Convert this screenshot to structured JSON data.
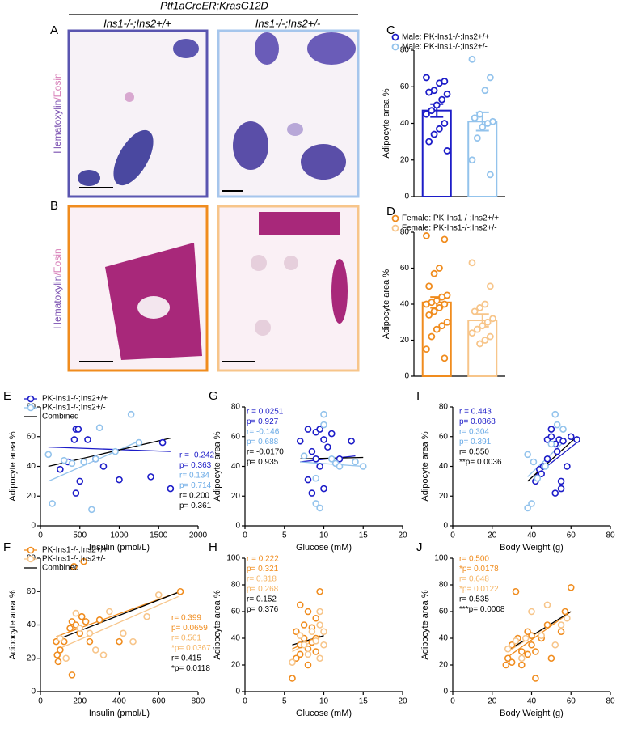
{
  "figure": {
    "header": "Ptf1aCreER;KrasG12D",
    "columns": [
      "Ins1-/-;Ins2+/+",
      "Ins1-/-;Ins2+/-"
    ],
    "panels": [
      {
        "letter": "A",
        "stain": [
          "Hematoxylin",
          "/Eosin"
        ]
      },
      {
        "letter": "B",
        "stain": [
          "Hematoxylin",
          "/Eosin"
        ]
      }
    ]
  },
  "chart_data": [
    {
      "type": "bar",
      "panel": "C",
      "ylabel": "Adipocyte area %",
      "ylim": [
        0,
        80
      ],
      "yticks": [
        0,
        20,
        40,
        60,
        80
      ],
      "series": [
        {
          "name": "Male: PK-Ins1-/-;Ins2+/+",
          "color": "#1c1cc8",
          "mean": 47,
          "sem": 3.5,
          "values": [
            65,
            63,
            62,
            58,
            57,
            56,
            53,
            50,
            47,
            45,
            40,
            37,
            34,
            30,
            25
          ]
        },
        {
          "name": "Male: PK-Ins1-/-;Ins2+/-",
          "color": "#93c3ec",
          "mean": 41,
          "sem": 5,
          "values": [
            75,
            65,
            58,
            45,
            43,
            41,
            40,
            38,
            32,
            20,
            12
          ]
        }
      ]
    },
    {
      "type": "bar",
      "panel": "D",
      "ylabel": "Adipocyte area %",
      "ylim": [
        0,
        80
      ],
      "yticks": [
        0,
        20,
        40,
        60,
        80
      ],
      "series": [
        {
          "name": "Female: PK-Ins1-/-;Ins2+/+",
          "color": "#f08c1e",
          "mean": 41,
          "sem": 3,
          "values": [
            78,
            76,
            60,
            57,
            50,
            45,
            44,
            42,
            41,
            40,
            40,
            38,
            36,
            34,
            30,
            28,
            26,
            22,
            15,
            10
          ]
        },
        {
          "name": "Female: PK-Ins1-/-;Ins2+/-",
          "color": "#f7c58a",
          "mean": 31,
          "sem": 3.5,
          "values": [
            63,
            50,
            40,
            38,
            36,
            32,
            30,
            28,
            26,
            24,
            22,
            20,
            18
          ]
        }
      ]
    },
    {
      "type": "scatter",
      "panel": "E",
      "xlabel": "Insulin (pmol/L)",
      "ylabel": "Adipocyte area %",
      "xlim": [
        0,
        2000
      ],
      "xticks": [
        0,
        500,
        1000,
        1500,
        2000
      ],
      "ylim": [
        0,
        80
      ],
      "yticks": [
        0,
        20,
        40,
        60,
        80
      ],
      "series": [
        {
          "name": "PK-Ins1-/-;Ins2+/+",
          "color": "#1c1cc8",
          "x": [
            450,
            480,
            430,
            600,
            700,
            350,
            800,
            1000,
            1400,
            1550,
            1650,
            450,
            500,
            250
          ],
          "values": [
            65,
            65,
            58,
            58,
            45,
            43,
            40,
            31,
            33,
            56,
            25,
            22,
            30,
            38
          ]
        },
        {
          "name": "PK-Ins1-/-;Ins2+/-",
          "color": "#93c3ec",
          "x": [
            100,
            150,
            300,
            400,
            550,
            650,
            700,
            750,
            950,
            1150,
            1250
          ],
          "values": [
            48,
            15,
            44,
            42,
            43,
            11,
            45,
            66,
            50,
            75,
            56
          ]
        }
      ],
      "fits": [
        {
          "color": "#1c1cc8",
          "x": [
            100,
            1650
          ],
          "values": [
            53,
            50
          ]
        },
        {
          "color": "#93c3ec",
          "x": [
            100,
            1250
          ],
          "values": [
            30,
            57
          ]
        },
        {
          "name": "Combined",
          "color": "#000000",
          "x": [
            100,
            1650
          ],
          "values": [
            40,
            59
          ]
        }
      ],
      "stats": [
        {
          "text": "r = -0.242",
          "color": "#1c1cc8"
        },
        {
          "text": "p= 0.363",
          "color": "#1c1cc8"
        },
        {
          "text": "r= 0.134",
          "color": "#6aaae6"
        },
        {
          "text": "p= 0.714",
          "color": "#6aaae6"
        },
        {
          "text": "r= 0.200",
          "color": "#000000"
        },
        {
          "text": "p= 0.361",
          "color": "#000000"
        }
      ]
    },
    {
      "type": "scatter",
      "panel": "G",
      "xlabel": "Glucose (mM)",
      "ylabel": "Adipocyte area %",
      "xlim": [
        0,
        20
      ],
      "xticks": [
        0,
        5,
        10,
        15,
        20
      ],
      "ylim": [
        0,
        80
      ],
      "yticks": [
        0,
        20,
        40,
        60,
        80
      ],
      "series": [
        {
          "name": "PK-Ins1-/-;Ins2+/+",
          "color": "#1c1cc8",
          "x": [
            7,
            8,
            8.5,
            9,
            9.5,
            9,
            10,
            10.5,
            11,
            8,
            8.5,
            10,
            12,
            13.5,
            9.5
          ],
          "values": [
            57,
            65,
            50,
            63,
            65,
            45,
            58,
            53,
            62,
            31,
            22,
            25,
            45,
            57,
            40
          ]
        },
        {
          "name": "PK-Ins1-/-;Ins2+/-",
          "color": "#93c3ec",
          "x": [
            7.5,
            9,
            9.5,
            10,
            10,
            11,
            11.5,
            12,
            14,
            15,
            9
          ],
          "values": [
            47,
            15,
            12,
            75,
            68,
            45,
            42,
            40,
            43,
            40,
            32
          ]
        }
      ],
      "fits": [
        {
          "color": "#1c1cc8",
          "x": [
            7,
            14
          ],
          "values": [
            43,
            47
          ]
        },
        {
          "color": "#93c3ec",
          "x": [
            7,
            15
          ],
          "values": [
            43,
            40
          ]
        },
        {
          "color": "#000000",
          "x": [
            7,
            15
          ],
          "values": [
            45,
            46
          ]
        }
      ],
      "stats": [
        {
          "text": "r = 0.0251",
          "color": "#1c1cc8"
        },
        {
          "text": "p= 0.927",
          "color": "#1c1cc8"
        },
        {
          "text": "r= -0.146",
          "color": "#6aaae6"
        },
        {
          "text": "p= 0.688",
          "color": "#6aaae6"
        },
        {
          "text": "r= -0.0170",
          "color": "#000000"
        },
        {
          "text": "p= 0.935",
          "color": "#000000"
        }
      ]
    },
    {
      "type": "scatter",
      "panel": "I",
      "xlabel": "Body Weight (g)",
      "ylabel": "Adipocyte area %",
      "xlim": [
        0,
        80
      ],
      "xticks": [
        0,
        20,
        40,
        60,
        80
      ],
      "ylim": [
        0,
        80
      ],
      "yticks": [
        0,
        20,
        40,
        60,
        80
      ],
      "series": [
        {
          "name": "PK-Ins1-/-;Ins2+/+",
          "color": "#1c1cc8",
          "x": [
            42,
            44,
            45,
            46,
            48,
            48,
            50,
            50,
            52,
            53,
            54,
            55,
            56,
            58,
            60,
            63,
            52,
            55
          ],
          "values": [
            30,
            38,
            35,
            40,
            45,
            58,
            60,
            65,
            55,
            50,
            58,
            30,
            57,
            40,
            60,
            58,
            22,
            25
          ]
        },
        {
          "name": "PK-Ins1-/-;Ins2+/-",
          "color": "#93c3ec",
          "x": [
            38,
            38,
            40,
            41,
            43,
            47,
            50,
            52,
            53,
            56
          ],
          "values": [
            48,
            12,
            15,
            43,
            32,
            40,
            55,
            75,
            68,
            65
          ]
        }
      ],
      "fits": [
        {
          "color": "#1c1cc8",
          "x": [
            42,
            63
          ],
          "values": [
            34,
            56
          ]
        },
        {
          "color": "#93c3ec",
          "x": [
            38,
            56
          ],
          "values": [
            33,
            56
          ]
        },
        {
          "color": "#000000",
          "x": [
            38,
            63
          ],
          "values": [
            30,
            60
          ]
        }
      ],
      "stats": [
        {
          "text": "r = 0.443",
          "color": "#1c1cc8"
        },
        {
          "text": "p= 0.0868",
          "color": "#1c1cc8"
        },
        {
          "text": "r= 0.304",
          "color": "#6aaae6"
        },
        {
          "text": "p= 0.391",
          "color": "#6aaae6"
        },
        {
          "text": "r= 0.550",
          "color": "#000000"
        },
        {
          "text": "**p= 0.0036",
          "color": "#000000"
        }
      ]
    },
    {
      "type": "scatter",
      "panel": "F",
      "xlabel": "Insulin (pmol/L)",
      "ylabel": "Adipocyte area %",
      "xlim": [
        0,
        800
      ],
      "xticks": [
        0,
        200,
        400,
        600,
        800
      ],
      "ylim": [
        0,
        80
      ],
      "yticks": [
        0,
        20,
        40,
        60,
        80
      ],
      "series": [
        {
          "name": "PK-Ins1-/-;Ins2+/+",
          "color": "#f08c1e",
          "x": [
            80,
            85,
            90,
            100,
            120,
            150,
            160,
            170,
            180,
            200,
            210,
            220,
            230,
            160,
            250,
            300,
            400,
            710
          ],
          "values": [
            30,
            22,
            18,
            25,
            30,
            38,
            42,
            75,
            40,
            35,
            45,
            78,
            42,
            10,
            30,
            43,
            30,
            60
          ]
        },
        {
          "name": "PK-Ins1-/-;Ins2+/-",
          "color": "#f7c58a",
          "x": [
            100,
            130,
            180,
            200,
            250,
            280,
            320,
            350,
            420,
            470,
            540,
            600
          ],
          "values": [
            32,
            20,
            47,
            38,
            35,
            25,
            22,
            48,
            35,
            30,
            45,
            58
          ]
        }
      ],
      "fits": [
        {
          "color": "#f08c1e",
          "x": [
            80,
            710
          ],
          "values": [
            33,
            60
          ]
        },
        {
          "color": "#f7c58a",
          "x": [
            80,
            700
          ],
          "values": [
            25,
            57
          ]
        },
        {
          "name": "Combined",
          "color": "#000000",
          "x": [
            80,
            710
          ],
          "values": [
            31,
            60
          ]
        }
      ],
      "stats": [
        {
          "text": "r= 0.399",
          "color": "#f08c1e"
        },
        {
          "text": "p= 0.0659",
          "color": "#f08c1e"
        },
        {
          "text": "r= 0.561",
          "color": "#f5b464"
        },
        {
          "text": "*p= 0.0367",
          "color": "#f5b464"
        },
        {
          "text": "r= 0.415",
          "color": "#000000"
        },
        {
          "text": "*p= 0.0118",
          "color": "#000000"
        }
      ]
    },
    {
      "type": "scatter",
      "panel": "H",
      "xlabel": "Glucose (mM)",
      "ylabel": "Adipocyte area %",
      "xlim": [
        0,
        20
      ],
      "xticks": [
        0,
        5,
        10,
        15,
        20
      ],
      "ylim": [
        0,
        100
      ],
      "yticks": [
        0,
        20,
        40,
        60,
        80,
        100
      ],
      "series": [
        {
          "name": "PK-Ins1-/-;Ins2+/+",
          "color": "#f08c1e",
          "x": [
            6,
            6.5,
            7,
            7,
            7.5,
            7.5,
            8,
            8,
            8.5,
            8,
            9,
            9,
            9.5,
            7,
            6.5,
            9,
            8.5
          ],
          "values": [
            10,
            45,
            35,
            28,
            50,
            40,
            60,
            32,
            48,
            20,
            40,
            30,
            75,
            65,
            25,
            55,
            37
          ]
        },
        {
          "name": "PK-Ins1-/-;Ins2+/-",
          "color": "#f7c58a",
          "x": [
            6,
            7,
            7.5,
            8.5,
            9,
            9.5,
            10,
            9.5,
            8,
            10,
            9.5
          ],
          "values": [
            22,
            42,
            35,
            45,
            38,
            50,
            45,
            60,
            28,
            35,
            25
          ]
        }
      ],
      "fits": [
        {
          "color": "#f08c1e",
          "x": [
            6,
            9.5
          ],
          "values": [
            32,
            42
          ]
        },
        {
          "color": "#f7c58a",
          "x": [
            6,
            10
          ],
          "values": [
            30,
            42
          ]
        },
        {
          "color": "#000000",
          "x": [
            6,
            10
          ],
          "values": [
            35,
            42
          ]
        }
      ],
      "stats": [
        {
          "text": "r = 0.222",
          "color": "#f08c1e"
        },
        {
          "text": "p= 0.321",
          "color": "#f08c1e"
        },
        {
          "text": "r= 0.318",
          "color": "#f5b464"
        },
        {
          "text": "p= 0.268",
          "color": "#f5b464"
        },
        {
          "text": "r= 0.152",
          "color": "#000000"
        },
        {
          "text": "p= 0.376",
          "color": "#000000"
        }
      ]
    },
    {
      "type": "scatter",
      "panel": "J",
      "xlabel": "Body Weight (g)",
      "ylabel": "Adipocyte area %",
      "xlim": [
        0,
        80
      ],
      "xticks": [
        0,
        20,
        40,
        60,
        80
      ],
      "ylim": [
        0,
        100
      ],
      "yticks": [
        0,
        20,
        40,
        60,
        80,
        100
      ],
      "series": [
        {
          "name": "PK-Ins1-/-;Ins2+/+",
          "color": "#f08c1e",
          "x": [
            27,
            28,
            30,
            30,
            32,
            33,
            35,
            35,
            38,
            38,
            40,
            40,
            42,
            42,
            45,
            48,
            50,
            55,
            57,
            60
          ],
          "values": [
            20,
            25,
            22,
            35,
            75,
            40,
            30,
            20,
            45,
            28,
            35,
            42,
            30,
            10,
            40,
            50,
            25,
            45,
            60,
            78
          ]
        },
        {
          "name": "PK-Ins1-/-;Ins2+/-",
          "color": "#f7c58a",
          "x": [
            28,
            32,
            35,
            37,
            40,
            45,
            48,
            52,
            55,
            58
          ],
          "values": [
            32,
            38,
            25,
            40,
            60,
            42,
            65,
            35,
            50,
            55
          ]
        }
      ],
      "fits": [
        {
          "color": "#f08c1e",
          "x": [
            27,
            60
          ],
          "values": [
            25,
            60
          ]
        },
        {
          "color": "#f7c58a",
          "x": [
            28,
            58
          ],
          "values": [
            30,
            58
          ]
        },
        {
          "color": "#000000",
          "x": [
            27,
            60
          ],
          "values": [
            30,
            60
          ]
        }
      ],
      "stats": [
        {
          "text": "r= 0.500",
          "color": "#f08c1e"
        },
        {
          "text": "*p= 0.0178",
          "color": "#f08c1e"
        },
        {
          "text": "r= 0.648",
          "color": "#f5b464"
        },
        {
          "text": "*p= 0.0122",
          "color": "#f5b464"
        },
        {
          "text": "r= 0.535",
          "color": "#000000"
        },
        {
          "text": "***p= 0.0008",
          "color": "#000000"
        }
      ]
    }
  ]
}
